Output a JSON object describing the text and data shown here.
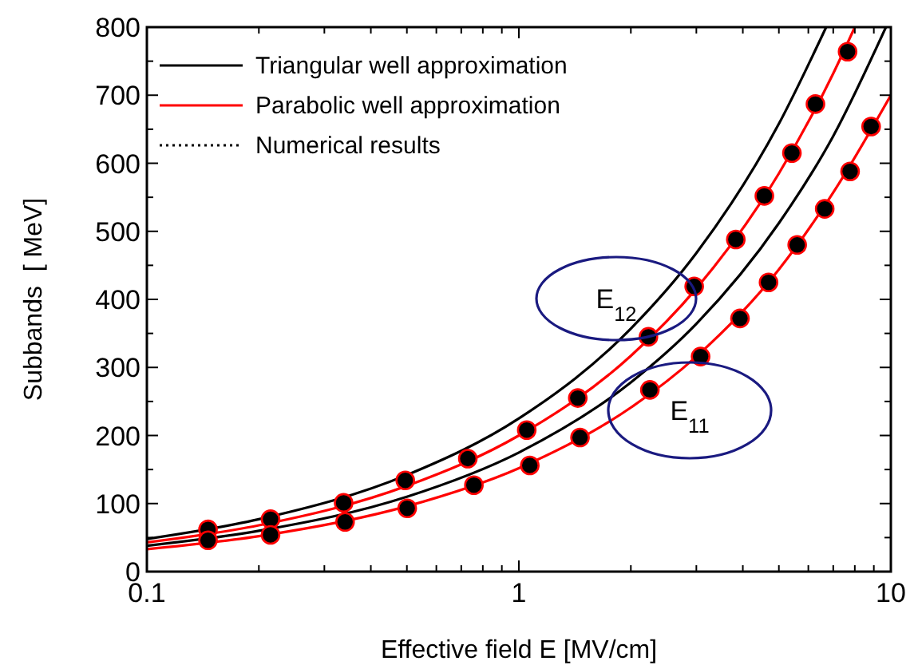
{
  "chart_data": {
    "type": "line",
    "xlabel": "Effective field E [MV/cm]",
    "ylabel": "Subbands  [ MeV]",
    "log": "x",
    "grid": false,
    "legend": "top left",
    "xlim": [
      0.1,
      10
    ],
    "ylim": [
      0,
      800
    ],
    "xticks": [
      0.1,
      {
        "value": 0.2,
        "label": null
      },
      {
        "value": 0.3,
        "label": null
      },
      {
        "value": 0.4,
        "label": null
      },
      {
        "value": 0.5,
        "label": null
      },
      {
        "value": 0.6,
        "label": null
      },
      {
        "value": 0.7,
        "label": null
      },
      {
        "value": 0.8,
        "label": null
      },
      {
        "value": 0.9,
        "label": null
      },
      1,
      {
        "value": 2,
        "label": null
      },
      {
        "value": 3,
        "label": null
      },
      {
        "value": 4,
        "label": null
      },
      {
        "value": 5,
        "label": null
      },
      {
        "value": 6,
        "label": null
      },
      {
        "value": 7,
        "label": null
      },
      {
        "value": 8,
        "label": null
      },
      {
        "value": 9,
        "label": null
      },
      10
    ],
    "yticks": [
      0,
      {
        "value": 50,
        "label": null
      },
      100,
      {
        "value": 150,
        "label": null
      },
      200,
      {
        "value": 250,
        "label": null
      },
      300,
      {
        "value": 350,
        "label": null
      },
      400,
      {
        "value": 450,
        "label": null
      },
      500,
      {
        "value": 550,
        "label": null
      },
      600,
      {
        "value": 650,
        "label": null
      },
      700,
      {
        "value": 750,
        "label": null
      },
      800
    ],
    "series": [
      {
        "name": "Triangular well approximation",
        "color": "#000000",
        "line_style": "solid",
        "x": [
          0.1,
          0.2,
          0.5,
          1,
          2,
          3,
          5,
          6.7
        ],
        "values": [
          48,
          77,
          142,
          225,
          357,
          468,
          658,
          800
        ]
      },
      {
        "color": "#000000",
        "line_style": "solid",
        "x": [
          0.1,
          0.2,
          0.5,
          1,
          2,
          3,
          5,
          7,
          9.7
        ],
        "values": [
          38,
          60,
          110,
          175,
          278,
          364,
          512,
          640,
          800
        ]
      },
      {
        "name": "Parabolic well approximation",
        "color": "#ff0000",
        "line_style": "solid",
        "x": [
          0.1,
          0.2,
          0.5,
          1,
          2,
          3,
          5,
          7,
          8
        ],
        "values": [
          43,
          68,
          126,
          200,
          317,
          416,
          585,
          732,
          800
        ]
      },
      {
        "color": "#ff0000",
        "line_style": "solid",
        "x": [
          0.1,
          0.2,
          0.5,
          1,
          2,
          3,
          5,
          7,
          10
        ],
        "values": [
          33,
          52,
          96,
          152,
          241,
          316,
          444,
          557,
          700
        ]
      },
      {
        "name": "Numerical results",
        "type": "scatter",
        "color": "#000000",
        "marker": "circle",
        "line_style": "dotted",
        "x": [
          0.146,
          0.215,
          0.338,
          0.495,
          0.729,
          1.05,
          1.44,
          2.23,
          2.96,
          3.83,
          4.57,
          5.42,
          6.27,
          7.65
        ],
        "values": [
          62,
          77,
          101,
          134,
          166,
          208,
          255,
          345,
          419,
          488,
          552,
          615,
          687,
          764
        ]
      },
      {
        "type": "scatter",
        "color": "#000000",
        "marker": "circle",
        "x": [
          0.146,
          0.215,
          0.341,
          0.501,
          0.757,
          1.07,
          1.46,
          2.25,
          3.08,
          3.93,
          4.69,
          5.6,
          6.64,
          7.77,
          8.85
        ],
        "values": [
          46,
          54,
          73,
          93,
          127,
          156,
          197,
          267,
          316,
          372,
          425,
          480,
          533,
          588,
          654
        ]
      }
    ],
    "annotations": [
      "E$_{12}$",
      "E$_{11}$"
    ]
  }
}
